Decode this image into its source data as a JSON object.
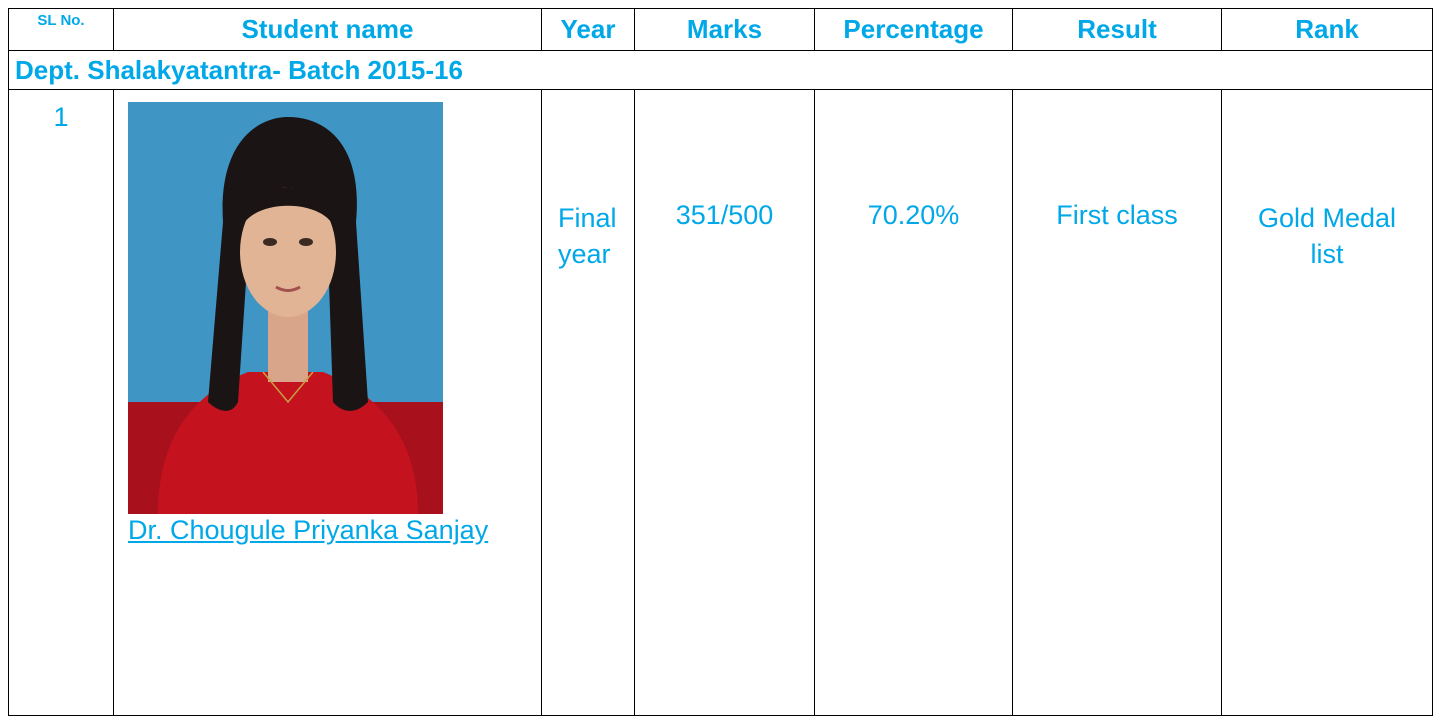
{
  "table": {
    "header": [
      "SL No.",
      "Student name",
      "Year",
      "Marks",
      "Percentage",
      "Result",
      "Rank"
    ],
    "section": "Dept. Shalakyatantra- Batch 2015-16",
    "rows": [
      [
        "1",
        "Dr. Chougule Priyanka Sanjay",
        "Final year",
        "351/500",
        "70.20%",
        "First class",
        "Gold Medal list"
      ]
    ]
  }
}
